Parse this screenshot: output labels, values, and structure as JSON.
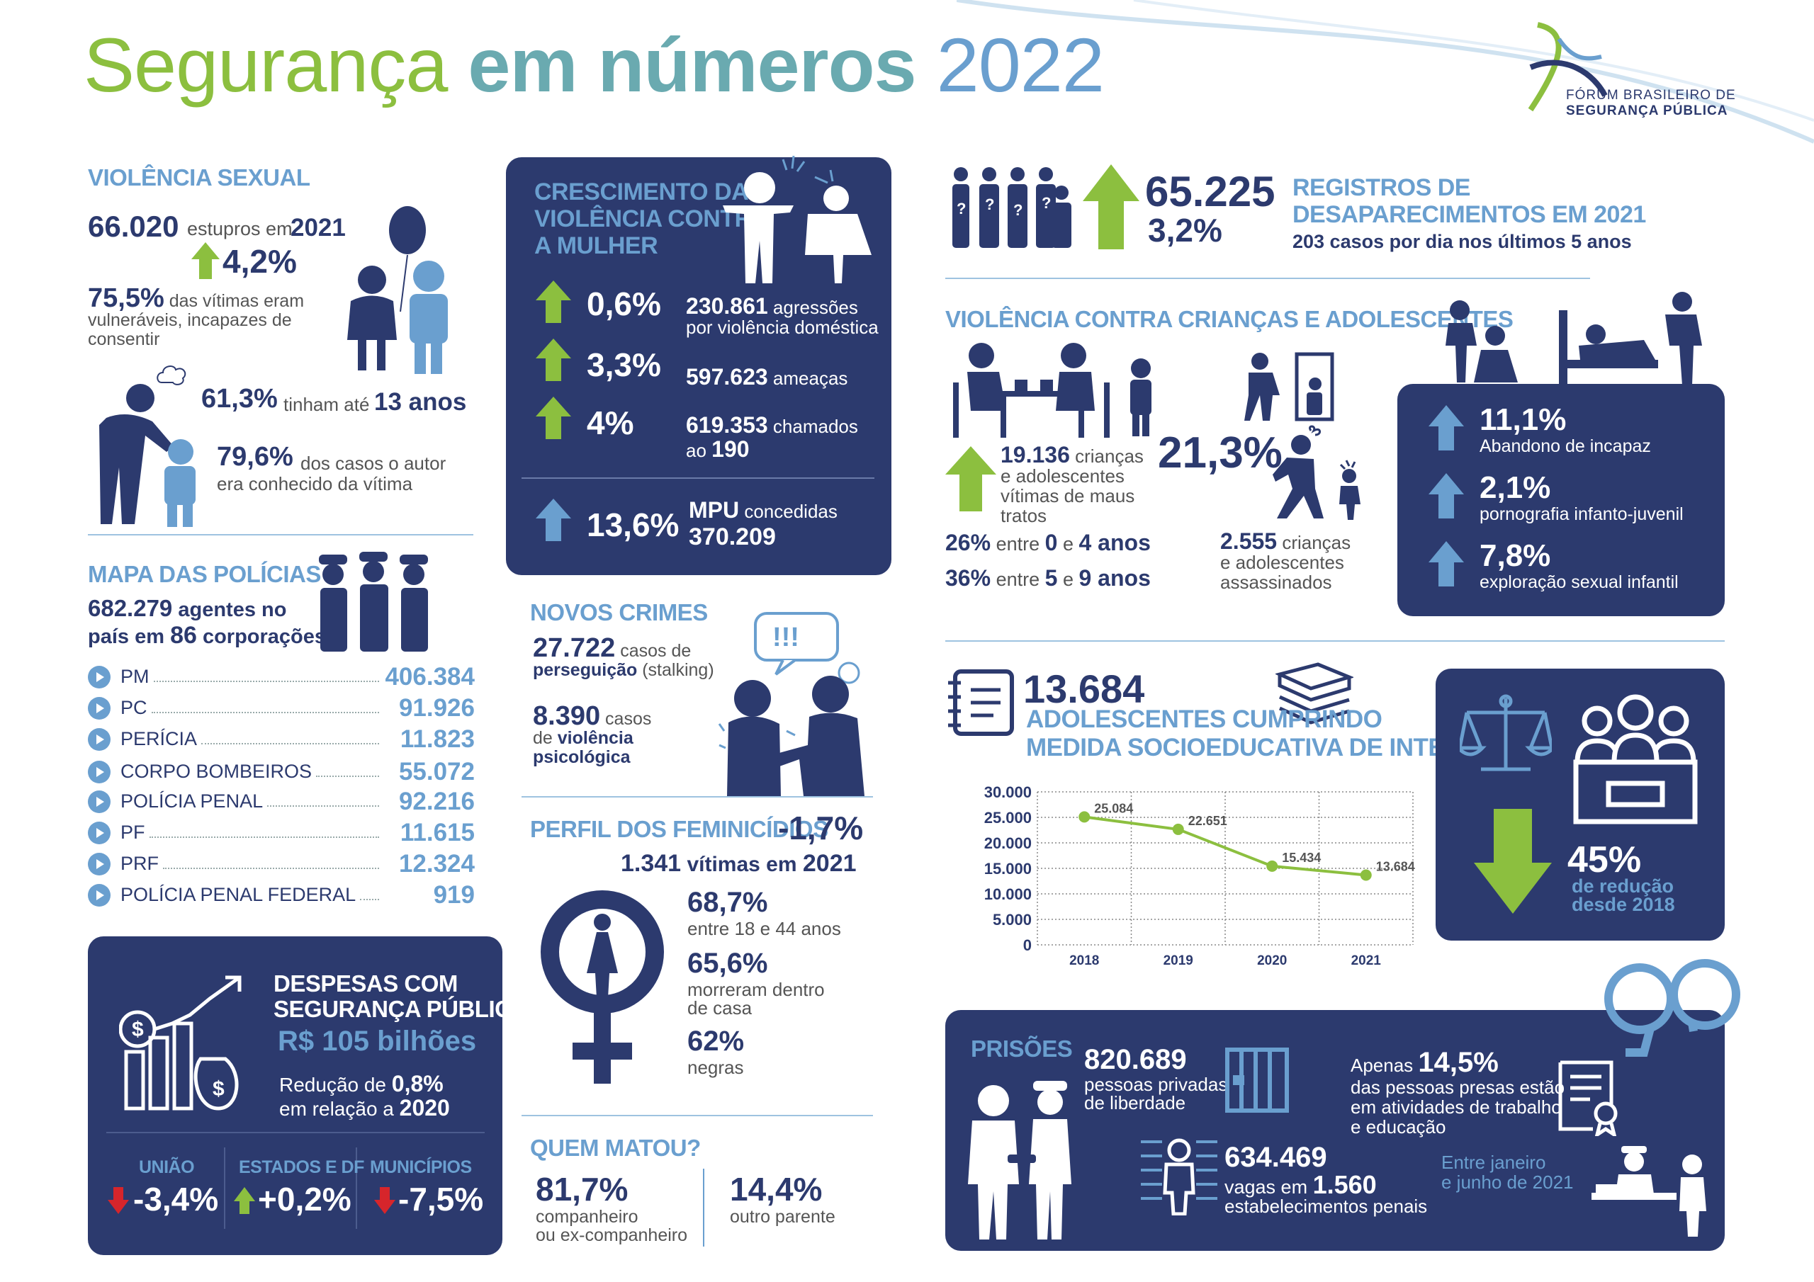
{
  "title": {
    "part1": "Segurança",
    "part2": "em números",
    "part3": "2022"
  },
  "logo": {
    "line1": "FÓRUM BRASILEIRO DE",
    "line2": "SEGURANÇA PÚBLICA"
  },
  "sexual": {
    "heading": "VIOLÊNCIA SEXUAL",
    "num": "66.020",
    "t1": "estupros em",
    "year": "2021",
    "pct": "4,2%",
    "p1": "75,5%",
    "p1t": "das vítimas eram vulneráveis, incapazes de consentir",
    "p2": "61,3%",
    "p2t": "tinham até",
    "p2y": "13 anos",
    "p3": "79,6%",
    "p3t": "dos casos o autor era conhecido da vítima"
  },
  "policias": {
    "heading": "MAPA DAS POLÍCIAS",
    "l1a": "682.279",
    "l1b": "agentes no",
    "l2a": "país em",
    "l2b": "86",
    "l2c": "corporações",
    "rows": [
      {
        "label": "PM",
        "value": "406.384"
      },
      {
        "label": "PC",
        "value": "91.926"
      },
      {
        "label": "PERÍCIA",
        "value": "11.823"
      },
      {
        "label": "CORPO BOMBEIROS",
        "value": "55.072"
      },
      {
        "label": "POLÍCIA PENAL",
        "value": "92.216"
      },
      {
        "label": "PF",
        "value": "11.615"
      },
      {
        "label": "PRF",
        "value": "12.324"
      },
      {
        "label": "POLÍCIA PENAL FEDERAL",
        "value": "919"
      }
    ]
  },
  "despesas": {
    "h1": "DESPESAS COM",
    "h2": "SEGURANÇA PÚBLICA",
    "amount": "R$ 105 bilhões",
    "r1": "Redução de",
    "r1v": "0,8%",
    "r2": "em relação a",
    "r2v": "2020",
    "c1": "UNIÃO",
    "c1v": "-3,4%",
    "c2": "ESTADOS E DF",
    "c2v": "+0,2%",
    "c3": "MUNICÍPIOS",
    "c3v": "-7,5%"
  },
  "mulher": {
    "h1": "CRESCIMENTO DA",
    "h2": "VIOLÊNCIA CONTRA",
    "h3": "A MULHER",
    "a1": "0,6%",
    "a1n": "230.861",
    "a1t1": "agressões",
    "a1t2": "por violência doméstica",
    "a2": "3,3%",
    "a2n": "597.623",
    "a2t": "ameaças",
    "a3": "4%",
    "a3n": "619.353",
    "a3t": "chamados",
    "a3t2": "ao",
    "a3v": "190",
    "a4": "13,6%",
    "a4n1": "MPU",
    "a4t": "concedidas",
    "a4n2": "370.209"
  },
  "novos": {
    "heading": "NOVOS CRIMES",
    "n1": "27.722",
    "n1t": "casos de",
    "n1b": "perseguição",
    "n1c": "(stalking)",
    "n2": "8.390",
    "n2t": "casos",
    "n2b": "de",
    "n2c": "violência",
    "n2d": "psicológica",
    "bubble": "!!!"
  },
  "femin": {
    "heading": "PERFIL DOS FEMINICÍDIOS",
    "pct": "-1,7%",
    "sub1": "1.341",
    "sub2": "vítimas em",
    "sub3": "2021",
    "s1": "68,7%",
    "s1t": "entre 18 e 44 anos",
    "s2": "65,6%",
    "s2t1": "morreram dentro",
    "s2t2": "de casa",
    "s3": "62%",
    "s3t": "negras"
  },
  "matou": {
    "heading": "QUEM MATOU?",
    "v1": "81,7%",
    "v1t1": "companheiro",
    "v1t2": "ou ex-companheiro",
    "v2": "14,4%",
    "v2t": "outro parente"
  },
  "desap": {
    "num": "65.225",
    "pct": "3,2%",
    "h1": "REGISTROS DE",
    "h2": "DESAPARECIMENTOS EM 2021",
    "sub": "203 casos por dia nos últimos 5 anos"
  },
  "criancas": {
    "heading": "VIOLÊNCIA CONTRA CRIANÇAS E ADOLESCENTES",
    "n1": "19.136",
    "n1t": "crianças",
    "n1t2": "e adolescentes",
    "n1t3": "vítimas de maus tratos",
    "pct": "21,3%",
    "r1a": "26%",
    "r1b": "entre",
    "r1c": "0",
    "r1d": "e",
    "r1e": "4 anos",
    "r2a": "36%",
    "r2b": "entre",
    "r2c": "5",
    "r2d": "e",
    "r2e": "9 anos",
    "n2": "2.555",
    "n2t": "crianças",
    "n2t2": "e adolescentes",
    "n2t3": "assassinados",
    "b1": "11,1%",
    "b1t": "Abandono de incapaz",
    "b2": "2,1%",
    "b2t": "pornografia infanto-juvenil",
    "b3": "7,8%",
    "b3t": "exploração sexual infantil"
  },
  "socio": {
    "num": "13.684",
    "h1": "ADOLESCENTES CUMPRINDO",
    "h2": "MEDIDA SOCIOEDUCATIVA DE INTERNAÇÃO",
    "red1": "45%",
    "red2": "de redução",
    "red3": "desde 2018"
  },
  "chart_data": {
    "type": "line",
    "categories": [
      "2018",
      "2019",
      "2020",
      "2021"
    ],
    "values": [
      25084,
      22651,
      15434,
      13684
    ],
    "labels": [
      "25.084",
      "22.651",
      "15.434",
      "13.684"
    ],
    "yticks": [
      "30.000",
      "25.000",
      "20.000",
      "15.000",
      "10.000",
      "5.000",
      "0"
    ],
    "ylim": [
      0,
      30000
    ],
    "title": "",
    "xlabel": "",
    "ylabel": "",
    "color": "#8cbf3f"
  },
  "prisoes": {
    "heading": "PRISÕES",
    "n1": "820.689",
    "n1t1": "pessoas privadas",
    "n1t2": "de liberdade",
    "a1": "Apenas",
    "a1v": "14,5%",
    "a1t1": "das pessoas presas estão",
    "a1t2": "em atividades de trabalho",
    "a1t3": "e educação",
    "n2": "634.469",
    "n2t1": "vagas em",
    "n2v": "1.560",
    "n2t2": "estabelecimentos penais",
    "period1": "Entre janeiro",
    "period2": "e junho de 2021"
  },
  "colors": {
    "navy": "#2c3a6e",
    "lightblue": "#6a9fcf",
    "green": "#8cbf3f",
    "red": "#d6252b"
  }
}
